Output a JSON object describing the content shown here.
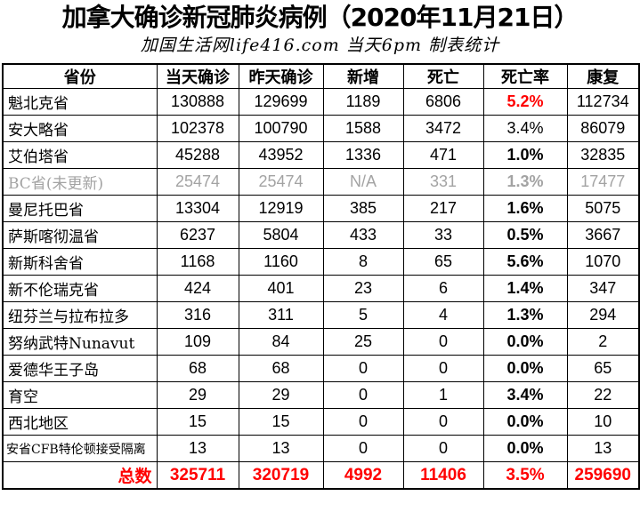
{
  "title": "加拿大确诊新冠肺炎病例（2020年11月21日）",
  "subtitle": "加国生活网life416.com 当天6pm 制表统计",
  "colors": {
    "red": "#ff0000",
    "muted": "#a3a3a3",
    "border": "#000000",
    "text": "#000000",
    "background": "#ffffff"
  },
  "chart_data": {
    "type": "table",
    "title": "加拿大确诊新冠肺炎病例（2020年11月21日）",
    "subtitle": "加国生活网life416.com 当天6pm 制表统计",
    "columns": [
      "省份",
      "当天确诊",
      "昨天确诊",
      "新增",
      "死亡",
      "死亡率",
      "康复"
    ],
    "rows": [
      {
        "province": "魁北克省",
        "today": 130888,
        "yesterday": 129699,
        "new": "1189",
        "deaths": 6806,
        "rate": "5.2%",
        "recovered": 112734,
        "rate_red": true,
        "rate_bold": true,
        "muted": false,
        "small_label": false
      },
      {
        "province": "安大略省",
        "today": 102378,
        "yesterday": 100790,
        "new": "1588",
        "deaths": 3472,
        "rate": "3.4%",
        "recovered": 86079,
        "rate_red": false,
        "rate_bold": false,
        "muted": false,
        "small_label": false
      },
      {
        "province": "艾伯塔省",
        "today": 45288,
        "yesterday": 43952,
        "new": "1336",
        "deaths": 471,
        "rate": "1.0%",
        "recovered": 32835,
        "rate_red": false,
        "rate_bold": true,
        "muted": false,
        "small_label": false
      },
      {
        "province": "BC省(未更新)",
        "today": 25474,
        "yesterday": 25474,
        "new": "N/A",
        "deaths": 331,
        "rate": "1.3%",
        "recovered": 17477,
        "rate_red": false,
        "rate_bold": true,
        "muted": true,
        "small_label": false
      },
      {
        "province": "曼尼托巴省",
        "today": 13304,
        "yesterday": 12919,
        "new": "385",
        "deaths": 217,
        "rate": "1.6%",
        "recovered": 5075,
        "rate_red": false,
        "rate_bold": true,
        "muted": false,
        "small_label": false
      },
      {
        "province": "萨斯喀彻温省",
        "today": 6237,
        "yesterday": 5804,
        "new": "433",
        "deaths": 33,
        "rate": "0.5%",
        "recovered": 3667,
        "rate_red": false,
        "rate_bold": true,
        "muted": false,
        "small_label": false
      },
      {
        "province": "新斯科舍省",
        "today": 1168,
        "yesterday": 1160,
        "new": "8",
        "deaths": 65,
        "rate": "5.6%",
        "recovered": 1070,
        "rate_red": false,
        "rate_bold": true,
        "muted": false,
        "small_label": false
      },
      {
        "province": "新不伦瑞克省",
        "today": 424,
        "yesterday": 401,
        "new": "23",
        "deaths": 6,
        "rate": "1.4%",
        "recovered": 347,
        "rate_red": false,
        "rate_bold": true,
        "muted": false,
        "small_label": false
      },
      {
        "province": "纽芬兰与拉布拉多",
        "today": 316,
        "yesterday": 311,
        "new": "5",
        "deaths": 4,
        "rate": "1.3%",
        "recovered": 294,
        "rate_red": false,
        "rate_bold": true,
        "muted": false,
        "small_label": false
      },
      {
        "province": "努纳武特Nunavut",
        "today": 109,
        "yesterday": 84,
        "new": "25",
        "deaths": 0,
        "rate": "0.0%",
        "recovered": 2,
        "rate_red": false,
        "rate_bold": true,
        "muted": false,
        "small_label": false
      },
      {
        "province": "爱德华王子岛",
        "today": 68,
        "yesterday": 68,
        "new": "0",
        "deaths": 0,
        "rate": "0.0%",
        "recovered": 65,
        "rate_red": false,
        "rate_bold": true,
        "muted": false,
        "small_label": false
      },
      {
        "province": "育空",
        "today": 29,
        "yesterday": 29,
        "new": "0",
        "deaths": 1,
        "rate": "3.4%",
        "recovered": 22,
        "rate_red": false,
        "rate_bold": true,
        "muted": false,
        "small_label": false
      },
      {
        "province": "西北地区",
        "today": 15,
        "yesterday": 15,
        "new": "0",
        "deaths": 0,
        "rate": "0.0%",
        "recovered": 10,
        "rate_red": false,
        "rate_bold": true,
        "muted": false,
        "small_label": false
      },
      {
        "province": "安省CFB特伦顿接受隔离",
        "today": 13,
        "yesterday": 13,
        "new": "0",
        "deaths": 0,
        "rate": "0.0%",
        "recovered": 13,
        "rate_red": false,
        "rate_bold": true,
        "muted": false,
        "small_label": true
      }
    ],
    "totals": {
      "label": "总数",
      "today": "325711",
      "yesterday": "320719",
      "new": "4992",
      "deaths": "11406",
      "rate": "3.5%",
      "recovered": "259690"
    }
  }
}
